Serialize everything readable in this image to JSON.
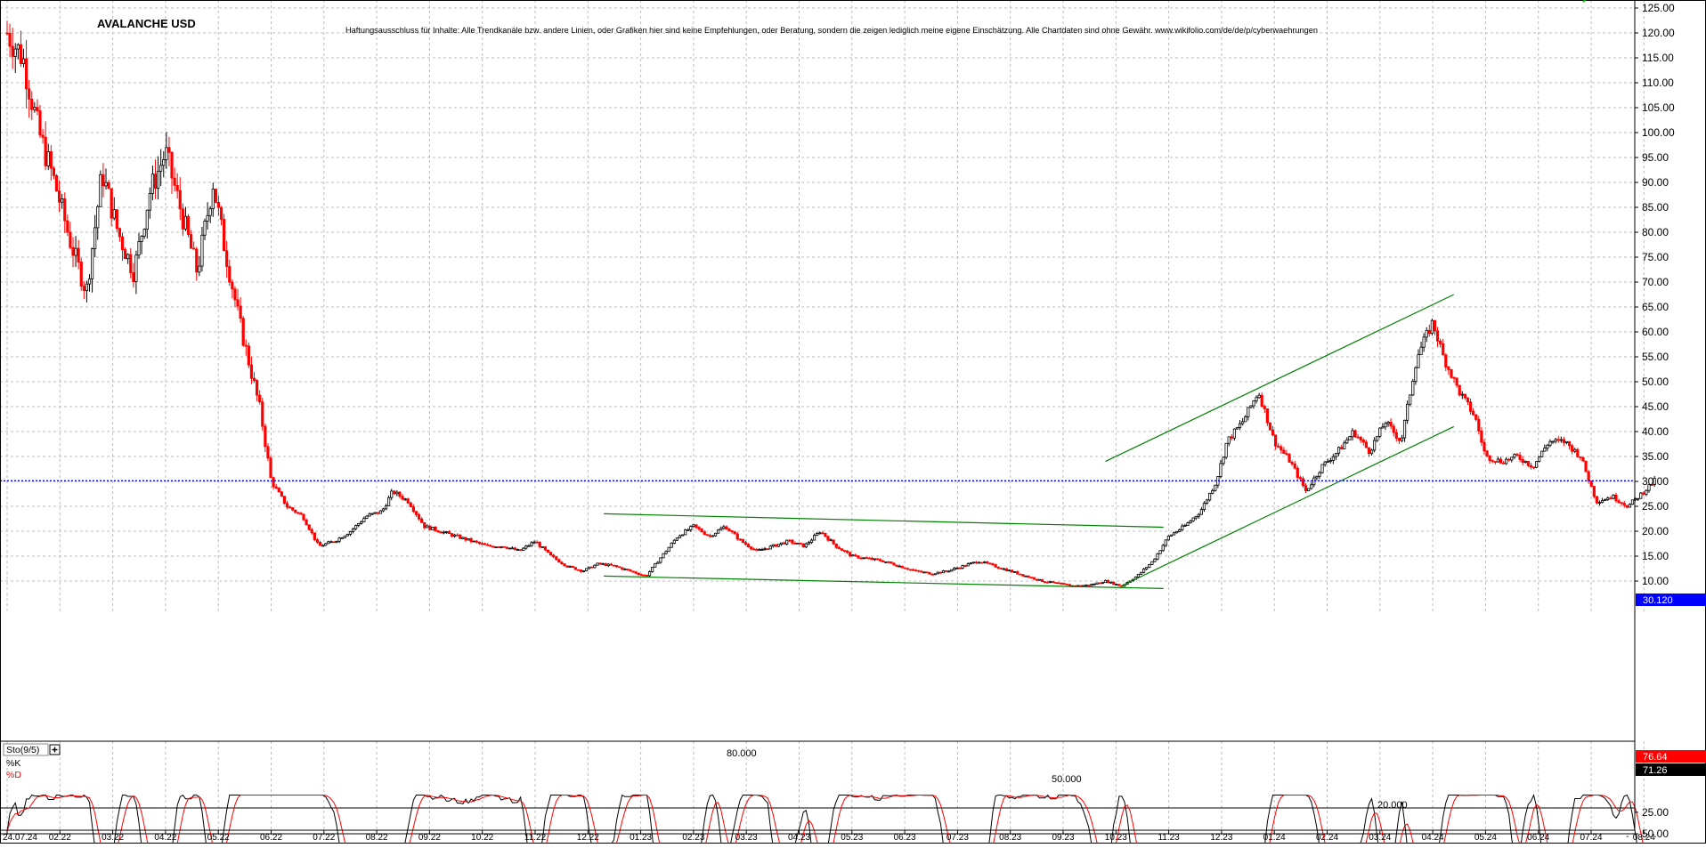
{
  "header": {
    "title": "AVALANCHE USD",
    "disclaimer": "Haftungsausschluss für Inhalte: Alle Trendkanäle bzw. andere Linien, oder Grafiken hier sind keine Empfehlungen, oder Beratung, sondern die zeigen lediglich meine eigene Einschätzung. Alle Chartdaten sind ohne Gewähr.  www.wikifolio.com/de/de/p/cyberwaehrungen"
  },
  "colors": {
    "up": "#000000",
    "down": "#ff0000",
    "trend": "#008000",
    "current": "#0000ff",
    "grid": "#bdbdbd"
  },
  "chart_data": [
    {
      "type": "candlestick",
      "ylim": [
        5,
        127.5
      ],
      "y_ticks": [
        "125.00",
        "120.00",
        "115.00",
        "110.00",
        "105.00",
        "100.00",
        "95.00",
        "90.00",
        "85.00",
        "80.00",
        "75.00",
        "70.00",
        "65.00",
        "60.00",
        "55.00",
        "50.00",
        "45.00",
        "40.00",
        "35.00",
        "30.00",
        "25.00",
        "20.00",
        "15.00",
        "10.00"
      ],
      "y_tick_values": [
        125,
        120,
        115,
        110,
        105,
        100,
        95,
        90,
        85,
        80,
        75,
        70,
        65,
        60,
        55,
        50,
        45,
        40,
        35,
        30,
        25,
        20,
        15,
        10
      ],
      "x_ticks": [
        "24.07.24",
        "02.22",
        "03.22",
        "04.22",
        "05.22",
        "06.22",
        "07.22",
        "08.22",
        "09.22",
        "10.22",
        "11.22",
        "12.22",
        "01.23",
        "02.23",
        "03.23",
        "04.23",
        "05.23",
        "06.23",
        "07.23",
        "08.23",
        "09.23",
        "10.23",
        "11.23",
        "12.23",
        "01.24",
        "02.24",
        "03.24",
        "04.24",
        "05.24",
        "06.24",
        "07.24",
        "08.24"
      ],
      "x_tick_months": [
        0,
        1,
        2,
        3,
        4,
        5,
        6,
        7,
        8,
        9,
        10,
        11,
        12,
        13,
        14,
        15,
        16,
        17,
        18,
        19,
        20,
        21,
        22,
        23,
        24,
        25,
        26,
        27,
        28,
        29,
        30,
        31
      ],
      "current_value": 30.12,
      "current_label": "30.120",
      "path": [
        [
          0,
          120
        ],
        [
          0.3,
          115
        ],
        [
          0.6,
          100
        ],
        [
          0.9,
          90
        ],
        [
          1.2,
          78
        ],
        [
          1.5,
          68
        ],
        [
          1.8,
          92
        ],
        [
          2.1,
          80
        ],
        [
          2.4,
          72
        ],
        [
          2.7,
          88
        ],
        [
          3.0,
          96
        ],
        [
          3.3,
          84
        ],
        [
          3.6,
          72
        ],
        [
          3.9,
          90
        ],
        [
          4.1,
          78
        ],
        [
          4.4,
          62
        ],
        [
          4.8,
          44
        ],
        [
          5.0,
          30
        ],
        [
          5.3,
          25
        ],
        [
          5.6,
          23
        ],
        [
          5.9,
          17
        ],
        [
          6.2,
          18
        ],
        [
          6.5,
          20
        ],
        [
          6.8,
          23
        ],
        [
          7.1,
          24
        ],
        [
          7.3,
          28
        ],
        [
          7.6,
          26
        ],
        [
          7.9,
          21
        ],
        [
          8.2,
          20
        ],
        [
          8.5,
          19
        ],
        [
          8.8,
          18
        ],
        [
          9.1,
          17
        ],
        [
          9.4,
          17
        ],
        [
          9.7,
          16
        ],
        [
          10.0,
          18
        ],
        [
          10.3,
          15
        ],
        [
          10.6,
          13
        ],
        [
          10.9,
          12
        ],
        [
          11.2,
          13.5
        ],
        [
          11.5,
          13
        ],
        [
          11.8,
          12
        ],
        [
          12.1,
          11
        ],
        [
          12.4,
          15
        ],
        [
          12.7,
          19
        ],
        [
          13.0,
          21
        ],
        [
          13.3,
          19
        ],
        [
          13.6,
          21
        ],
        [
          13.9,
          18
        ],
        [
          14.2,
          16
        ],
        [
          14.5,
          17
        ],
        [
          14.8,
          18
        ],
        [
          15.1,
          17
        ],
        [
          15.4,
          20
        ],
        [
          15.7,
          17
        ],
        [
          16.0,
          15
        ],
        [
          16.3,
          14.5
        ],
        [
          16.6,
          14
        ],
        [
          16.9,
          13
        ],
        [
          17.2,
          12
        ],
        [
          17.5,
          11.5
        ],
        [
          17.8,
          12
        ],
        [
          18.1,
          13
        ],
        [
          18.4,
          14
        ],
        [
          18.7,
          13
        ],
        [
          19.0,
          12
        ],
        [
          19.3,
          11
        ],
        [
          19.6,
          10
        ],
        [
          19.9,
          9.5
        ],
        [
          20.2,
          9
        ],
        [
          20.5,
          9.2
        ],
        [
          20.8,
          10
        ],
        [
          21.1,
          9
        ],
        [
          21.4,
          11
        ],
        [
          21.7,
          14
        ],
        [
          22.0,
          19
        ],
        [
          22.3,
          21
        ],
        [
          22.6,
          24
        ],
        [
          22.9,
          30
        ],
        [
          23.1,
          38
        ],
        [
          23.4,
          42
        ],
        [
          23.7,
          48
        ],
        [
          24.0,
          38
        ],
        [
          24.3,
          34
        ],
        [
          24.6,
          28
        ],
        [
          24.9,
          33
        ],
        [
          25.2,
          36
        ],
        [
          25.5,
          40
        ],
        [
          25.8,
          36
        ],
        [
          26.1,
          42
        ],
        [
          26.4,
          38
        ],
        [
          26.7,
          55
        ],
        [
          27.0,
          62
        ],
        [
          27.2,
          55
        ],
        [
          27.5,
          48
        ],
        [
          27.8,
          43
        ],
        [
          28.0,
          35
        ],
        [
          28.3,
          34
        ],
        [
          28.6,
          35
        ],
        [
          28.9,
          33
        ],
        [
          29.2,
          38
        ],
        [
          29.5,
          38
        ],
        [
          29.8,
          35
        ],
        [
          30.1,
          26
        ],
        [
          30.4,
          27
        ],
        [
          30.7,
          25
        ],
        [
          31.0,
          28
        ],
        [
          31.2,
          30.12
        ]
      ],
      "trendlines": [
        {
          "from": [
            11.3,
            23.5
          ],
          "to": [
            21.9,
            20.8
          ]
        },
        {
          "from": [
            11.3,
            11.0
          ],
          "to": [
            21.9,
            8.5
          ]
        },
        {
          "from": [
            20.8,
            34
          ],
          "to": [
            27.4,
            67.5
          ]
        },
        {
          "from": [
            21.1,
            9
          ],
          "to": [
            27.4,
            41
          ]
        }
      ]
    },
    {
      "type": "line",
      "title": "Sto(9/5)",
      "series": [
        {
          "name": "%K",
          "current": 76.64,
          "label": "76.64"
        },
        {
          "name": "%D",
          "current": 71.26,
          "label": "71.26"
        }
      ],
      "levels": [
        80,
        50,
        20
      ],
      "level_labels": [
        "80.000",
        "50.000",
        "20.000"
      ],
      "y_ticks": [
        "50.00",
        "25.00"
      ],
      "y_tick_values": [
        50,
        25
      ]
    }
  ]
}
